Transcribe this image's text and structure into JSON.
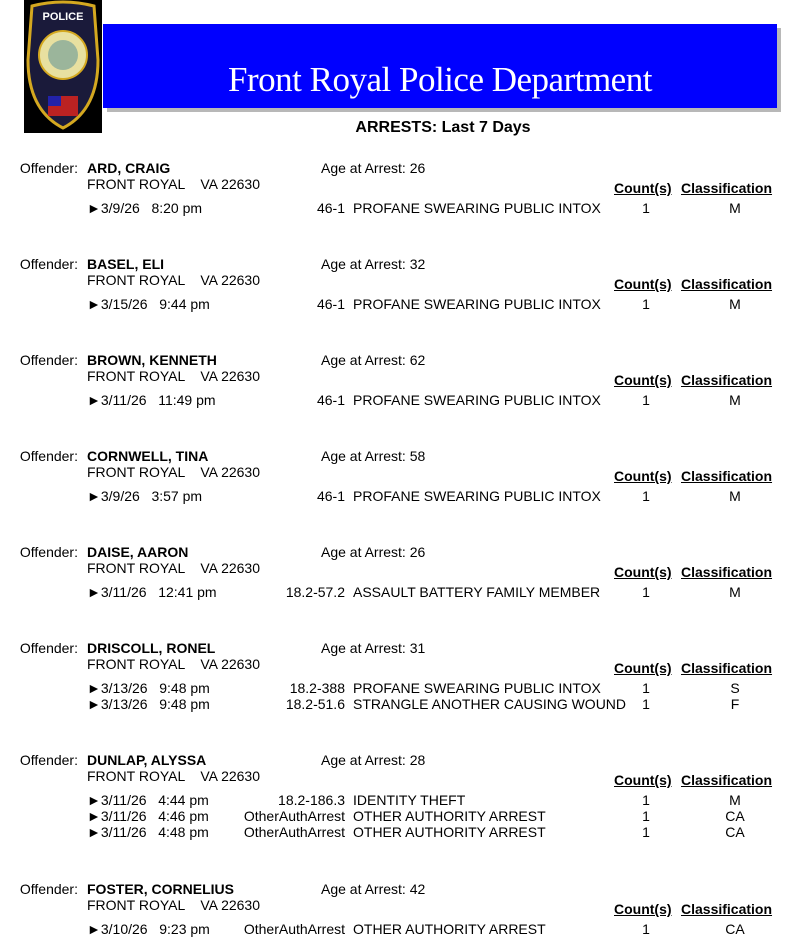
{
  "header": {
    "title": "Front Royal Police Department",
    "subtitle": "ARRESTS:  Last 7 Days",
    "logo_text": "POLICE TOWN OF FRONT ROYAL VIRGINIA",
    "banner_color": "#0000ff"
  },
  "labels": {
    "offender": "Offender:",
    "count": "Count(s)",
    "classification": "Classification",
    "bullet": "►"
  },
  "offenders": [
    {
      "name": "ARD, CRAIG",
      "age": "Age at Arrest: 26",
      "address": "FRONT ROYAL    VA 22630",
      "charges": [
        {
          "datetime": "3/9/26   8:20 pm",
          "statute": "46-1",
          "description": "PROFANE SWEARING PUBLIC INTOX",
          "count": "1",
          "class": "M"
        }
      ]
    },
    {
      "name": "BASEL, ELI",
      "age": "Age at Arrest: 32",
      "address": "FRONT ROYAL    VA 22630",
      "charges": [
        {
          "datetime": "3/15/26   9:44 pm",
          "statute": "46-1",
          "description": "PROFANE SWEARING PUBLIC INTOX",
          "count": "1",
          "class": "M"
        }
      ]
    },
    {
      "name": "BROWN, KENNETH",
      "age": "Age at Arrest: 62",
      "address": "FRONT ROYAL    VA 22630",
      "charges": [
        {
          "datetime": "3/11/26   11:49 pm",
          "statute": "46-1",
          "description": "PROFANE SWEARING PUBLIC INTOX",
          "count": "1",
          "class": "M"
        }
      ]
    },
    {
      "name": "CORNWELL, TINA",
      "age": "Age at Arrest: 58",
      "address": "FRONT ROYAL    VA 22630",
      "charges": [
        {
          "datetime": "3/9/26   3:57 pm",
          "statute": "46-1",
          "description": "PROFANE SWEARING PUBLIC INTOX",
          "count": "1",
          "class": "M"
        }
      ]
    },
    {
      "name": "DAISE, AARON",
      "age": "Age at Arrest: 26",
      "address": "FRONT ROYAL    VA 22630",
      "charges": [
        {
          "datetime": "3/11/26   12:41 pm",
          "statute": "18.2-57.2",
          "description": "ASSAULT BATTERY FAMILY MEMBER",
          "count": "1",
          "class": "M"
        }
      ]
    },
    {
      "name": "DRISCOLL, RONEL",
      "age": "Age at Arrest: 31",
      "address": "FRONT ROYAL    VA 22630",
      "charges": [
        {
          "datetime": "3/13/26   9:48 pm",
          "statute": "18.2-388",
          "description": "PROFANE SWEARING PUBLIC INTOX",
          "count": "1",
          "class": "S"
        },
        {
          "datetime": "3/13/26   9:48 pm",
          "statute": "18.2-51.6",
          "description": "STRANGLE ANOTHER CAUSING WOUND",
          "count": "1",
          "class": "F"
        }
      ]
    },
    {
      "name": "DUNLAP, ALYSSA",
      "age": "Age at Arrest: 28",
      "address": "FRONT ROYAL    VA 22630",
      "charges": [
        {
          "datetime": "3/11/26   4:44 pm",
          "statute": "18.2-186.3",
          "description": "IDENTITY THEFT",
          "count": "1",
          "class": "M"
        },
        {
          "datetime": "3/11/26   4:46 pm",
          "statute": "OtherAuthArrest",
          "description": "OTHER AUTHORITY ARREST",
          "count": "1",
          "class": "CA"
        },
        {
          "datetime": "3/11/26   4:48 pm",
          "statute": "OtherAuthArrest",
          "description": "OTHER AUTHORITY ARREST",
          "count": "1",
          "class": "CA"
        }
      ]
    },
    {
      "name": "FOSTER, CORNELIUS",
      "age": "Age at Arrest: 42",
      "address": "FRONT ROYAL    VA 22630",
      "charges": [
        {
          "datetime": "3/10/26   9:23 pm",
          "statute": "OtherAuthArrest",
          "description": "OTHER AUTHORITY ARREST",
          "count": "1",
          "class": "CA"
        }
      ]
    }
  ]
}
